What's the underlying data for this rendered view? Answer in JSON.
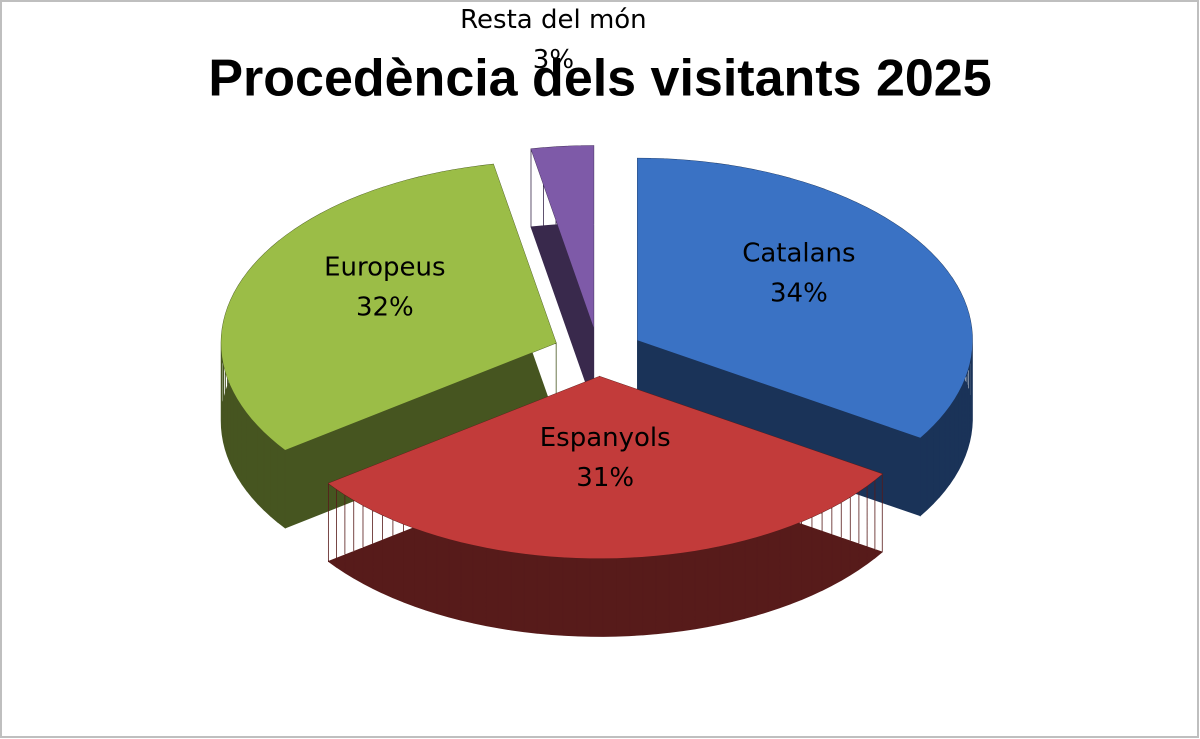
{
  "chart_data": {
    "type": "pie",
    "title": "Procedència dels visitants 2025",
    "categories": [
      "Catalans",
      "Espanyols",
      "Europeus",
      "Resta del món"
    ],
    "values": [
      34,
      31,
      32,
      3
    ],
    "value_labels": [
      "34%",
      "31%",
      "32%",
      "3%"
    ],
    "colors": [
      "#3a72c4",
      "#c23b3a",
      "#9bbd47",
      "#7e5aa8"
    ],
    "exploded": true,
    "three_d": true
  }
}
